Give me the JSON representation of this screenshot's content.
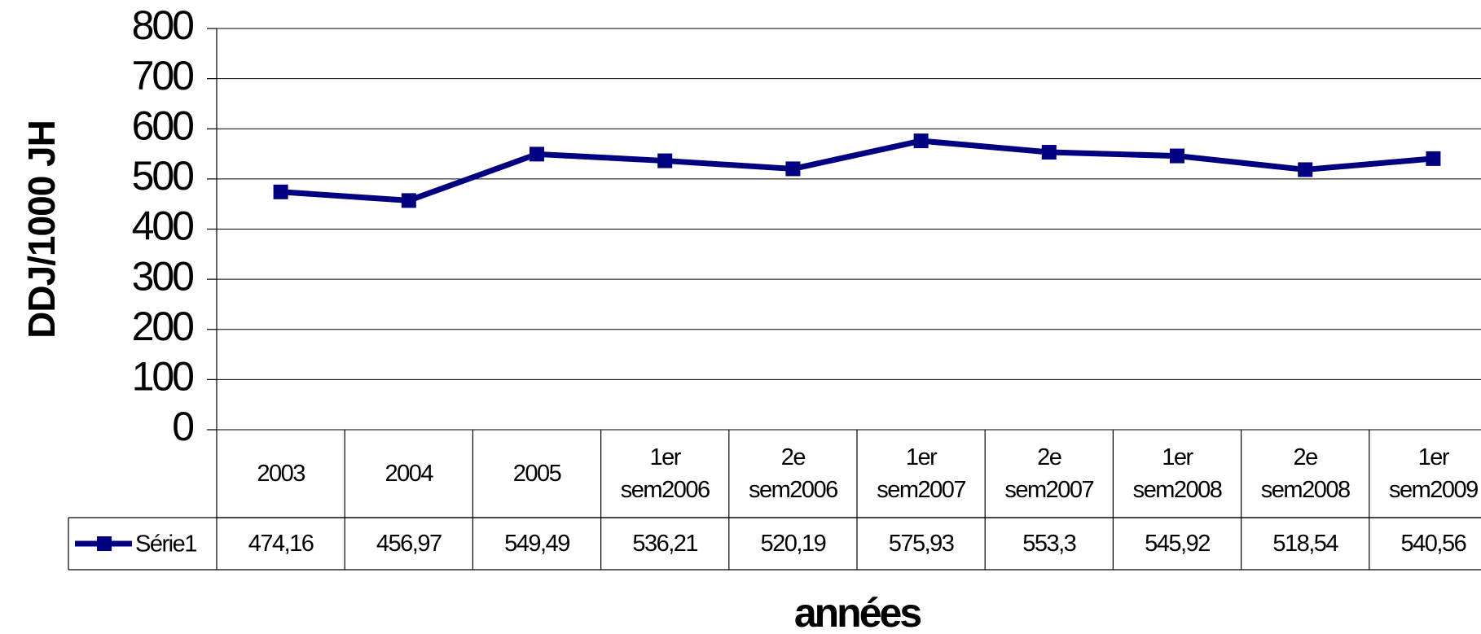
{
  "chart_data": {
    "type": "line",
    "ylabel": "DDJ/1000 JH",
    "xlabel": "années",
    "categories": [
      "2003",
      "2004",
      "2005",
      "1er sem2006",
      "2e sem2006",
      "1er sem2007",
      "2e sem2007",
      "1er sem2008",
      "2e sem2008",
      "1er sem2009"
    ],
    "series": [
      {
        "name": "Série1",
        "color": "#000080",
        "values": [
          474.16,
          456.97,
          549.49,
          536.21,
          520.19,
          575.93,
          553.3,
          545.92,
          518.54,
          540.56
        ],
        "value_labels": [
          "474,16",
          "456,97",
          "549,49",
          "536,21",
          "520,19",
          "575,93",
          "553,3",
          "545,92",
          "518,54",
          "540,56"
        ]
      }
    ],
    "ylim": [
      0,
      800
    ],
    "yticks": [
      0,
      100,
      200,
      300,
      400,
      500,
      600,
      700,
      800
    ],
    "grid": true
  }
}
